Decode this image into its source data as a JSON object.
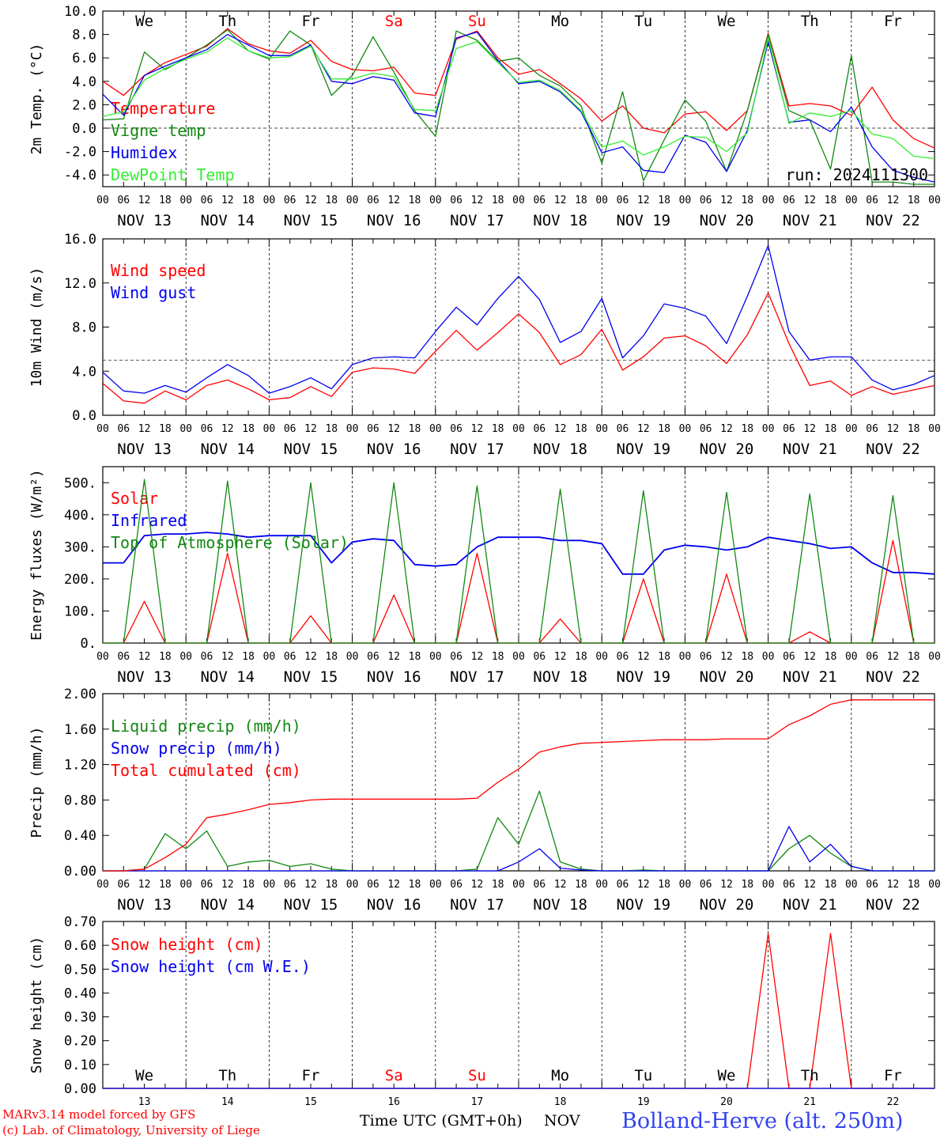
{
  "colors": {
    "red": "#ff0000",
    "green": "#118811",
    "blue": "#0000ee",
    "lightgreen": "#33ee33",
    "grid": "#000000"
  },
  "footer": {
    "model": "MARv3.14 model forced by GFS",
    "copyright": "(c) Lab. of Climatology, University of Liege",
    "xaxis": "Time UTC (GMT+0h)",
    "month": "NOV",
    "station": "Bolland-Herve (alt. 250m)"
  },
  "days": [
    {
      "date": "NOV 13",
      "dow": "We",
      "num": "13",
      "weekend": false
    },
    {
      "date": "NOV 14",
      "dow": "Th",
      "num": "14",
      "weekend": false
    },
    {
      "date": "NOV 15",
      "dow": "Fr",
      "num": "15",
      "weekend": false
    },
    {
      "date": "NOV 16",
      "dow": "Sa",
      "num": "16",
      "weekend": true
    },
    {
      "date": "NOV 17",
      "dow": "Su",
      "num": "17",
      "weekend": true
    },
    {
      "date": "NOV 18",
      "dow": "Mo",
      "num": "18",
      "weekend": false
    },
    {
      "date": "NOV 19",
      "dow": "Tu",
      "num": "19",
      "weekend": false
    },
    {
      "date": "NOV 20",
      "dow": "We",
      "num": "20",
      "weekend": false
    },
    {
      "date": "NOV 21",
      "dow": "Th",
      "num": "21",
      "weekend": false
    },
    {
      "date": "NOV 22",
      "dow": "Fr",
      "num": "22",
      "weekend": false
    }
  ],
  "hour_ticks": [
    "00",
    "06",
    "12",
    "18"
  ],
  "chart_data": [
    {
      "type": "line",
      "ylabel": "2m Temp. (°C)",
      "ylim": [
        -5,
        10
      ],
      "yticks": [
        "10.0",
        "8.0",
        "6.0",
        "4.0",
        "2.0",
        "0.0",
        "-2.0",
        "-4.0"
      ],
      "ytick_values": [
        10,
        8,
        6,
        4,
        2,
        0,
        -2,
        -4
      ],
      "ref_line": 0,
      "note": "run: 2024111300",
      "x": [
        0,
        6,
        12,
        18,
        24,
        30,
        36,
        42,
        48,
        54,
        60,
        66,
        72,
        78,
        84,
        90,
        96,
        102,
        108,
        114,
        120,
        126,
        132,
        138,
        144,
        150,
        156,
        162,
        168,
        174,
        180,
        186,
        192,
        198,
        204,
        210,
        216,
        222,
        228,
        234,
        240
      ],
      "series": [
        {
          "name": "Temperature",
          "color": "red",
          "values": [
            4.0,
            2.8,
            4.5,
            5.6,
            6.3,
            7.0,
            8.5,
            7.2,
            6.6,
            6.4,
            7.5,
            5.7,
            5.0,
            4.9,
            5.2,
            3.0,
            2.8,
            7.6,
            8.3,
            6.0,
            4.6,
            5.0,
            3.8,
            2.5,
            0.6,
            1.9,
            0.0,
            -0.4,
            1.2,
            1.4,
            -0.2,
            1.5,
            8.1,
            1.9,
            2.1,
            1.9,
            1.1,
            3.5,
            0.7,
            -0.9,
            -1.7
          ]
        },
        {
          "name": "Vigne temp",
          "color": "green",
          "values": [
            0.7,
            0.8,
            6.5,
            5.0,
            6.0,
            7.1,
            8.4,
            6.6,
            5.9,
            8.3,
            7.1,
            2.8,
            4.5,
            7.8,
            4.8,
            1.5,
            -0.7,
            8.3,
            7.5,
            5.7,
            6.0,
            4.5,
            3.6,
            1.9,
            -3.0,
            3.1,
            -4.5,
            -1.0,
            2.4,
            0.6,
            -3.7,
            1.5,
            8.0,
            1.5,
            0.7,
            -3.5,
            6.2,
            -4.6,
            -4.6,
            -4.8,
            -4.8
          ]
        },
        {
          "name": "Humidex",
          "color": "blue",
          "values": [
            2.9,
            1.1,
            4.5,
            5.3,
            6.0,
            6.7,
            8.0,
            7.1,
            6.2,
            6.2,
            7.1,
            4.0,
            3.8,
            4.4,
            4.1,
            1.3,
            1.0,
            7.7,
            8.2,
            5.8,
            3.8,
            4.0,
            3.1,
            1.4,
            -2.1,
            -1.6,
            -3.6,
            -3.8,
            -0.6,
            -1.2,
            -3.7,
            -0.2,
            7.4,
            0.5,
            0.7,
            -0.3,
            1.8,
            -1.6,
            -3.6,
            -4.2,
            -4.6
          ]
        },
        {
          "name": "DewPoint Temp",
          "color": "lightgreen",
          "values": [
            1.0,
            1.4,
            4.1,
            5.1,
            5.9,
            6.5,
            7.7,
            6.6,
            6.0,
            6.1,
            7.0,
            4.2,
            4.2,
            4.7,
            4.4,
            1.6,
            1.5,
            6.8,
            7.4,
            5.6,
            3.9,
            4.1,
            3.2,
            1.5,
            -1.6,
            -1.1,
            -2.3,
            -1.6,
            -0.7,
            -0.8,
            -2.0,
            -0.4,
            7.7,
            0.4,
            1.3,
            1.0,
            1.5,
            -0.5,
            -0.9,
            -2.4,
            -2.6
          ]
        }
      ]
    },
    {
      "type": "line",
      "ylabel": "10m Wind (m/s)",
      "ylim": [
        0,
        16
      ],
      "yticks": [
        "16.0",
        "12.0",
        "8.0",
        "4.0",
        "0.0"
      ],
      "ytick_values": [
        16,
        12,
        8,
        4,
        0
      ],
      "ref_line": 5,
      "note": "",
      "x": [
        0,
        6,
        12,
        18,
        24,
        30,
        36,
        42,
        48,
        54,
        60,
        66,
        72,
        78,
        84,
        90,
        96,
        102,
        108,
        114,
        120,
        126,
        132,
        138,
        144,
        150,
        156,
        162,
        168,
        174,
        180,
        186,
        192,
        198,
        204,
        210,
        216,
        222,
        228,
        234,
        240
      ],
      "series": [
        {
          "name": "Wind speed",
          "color": "red",
          "values": [
            2.9,
            1.3,
            1.1,
            2.2,
            1.4,
            2.7,
            3.2,
            2.4,
            1.4,
            1.6,
            2.6,
            1.7,
            3.9,
            4.3,
            4.2,
            3.8,
            5.8,
            7.7,
            5.9,
            7.5,
            9.2,
            7.5,
            4.6,
            5.5,
            7.8,
            4.1,
            5.3,
            7.0,
            7.2,
            6.3,
            4.7,
            7.3,
            11.1,
            6.5,
            2.7,
            3.1,
            1.8,
            2.6,
            1.9,
            2.3,
            2.7
          ]
        },
        {
          "name": "Wind gust",
          "color": "blue",
          "values": [
            3.9,
            2.2,
            2.0,
            2.7,
            2.1,
            3.4,
            4.6,
            3.6,
            2.0,
            2.6,
            3.4,
            2.4,
            4.6,
            5.2,
            5.3,
            5.2,
            7.6,
            9.8,
            8.2,
            10.6,
            12.6,
            10.5,
            6.6,
            7.6,
            10.6,
            5.2,
            7.2,
            10.1,
            9.7,
            9.0,
            6.5,
            10.8,
            15.4,
            7.6,
            5.0,
            5.3,
            5.3,
            3.2,
            2.3,
            2.8,
            3.6
          ]
        }
      ]
    },
    {
      "type": "line",
      "ylabel": "Energy fluxes (W/m²)",
      "ylim": [
        0,
        550
      ],
      "yticks": [
        "500.",
        "400.",
        "300.",
        "200.",
        "100.",
        "0."
      ],
      "ytick_values": [
        500,
        400,
        300,
        200,
        100,
        0
      ],
      "ref_line": null,
      "note": "",
      "x": [
        0,
        6,
        12,
        18,
        24,
        30,
        36,
        42,
        48,
        54,
        60,
        66,
        72,
        78,
        84,
        90,
        96,
        102,
        108,
        114,
        120,
        126,
        132,
        138,
        144,
        150,
        156,
        162,
        168,
        174,
        180,
        186,
        192,
        198,
        204,
        210,
        216,
        222,
        228,
        234,
        240
      ],
      "series": [
        {
          "name": "Solar",
          "color": "red",
          "values": [
            0,
            0,
            130,
            0,
            0,
            0,
            280,
            0,
            0,
            0,
            85,
            0,
            0,
            0,
            150,
            0,
            0,
            0,
            280,
            0,
            0,
            0,
            75,
            0,
            0,
            0,
            200,
            0,
            0,
            0,
            215,
            0,
            0,
            0,
            35,
            0,
            0,
            0,
            320,
            0,
            0
          ]
        },
        {
          "name": "Infrared",
          "color": "blue",
          "values": [
            250,
            250,
            335,
            340,
            340,
            345,
            340,
            330,
            335,
            335,
            335,
            250,
            315,
            325,
            320,
            245,
            240,
            245,
            300,
            330,
            330,
            330,
            320,
            320,
            310,
            215,
            215,
            290,
            305,
            300,
            290,
            300,
            330,
            320,
            310,
            295,
            300,
            250,
            220,
            220,
            215
          ]
        },
        {
          "name": "Top of Atmosphere (Solar)",
          "color": "green",
          "values": [
            0,
            0,
            510,
            0,
            0,
            0,
            505,
            0,
            0,
            0,
            500,
            0,
            0,
            0,
            500,
            0,
            0,
            0,
            490,
            0,
            0,
            0,
            480,
            0,
            0,
            0,
            475,
            0,
            0,
            0,
            470,
            0,
            0,
            0,
            465,
            0,
            0,
            0,
            460,
            0,
            0
          ]
        }
      ]
    },
    {
      "type": "line",
      "ylabel": "Precip (mm/h)",
      "ylim": [
        0,
        2
      ],
      "yticks": [
        "2.00",
        "1.60",
        "1.20",
        "0.80",
        "0.40",
        "0.00"
      ],
      "ytick_values": [
        2,
        1.6,
        1.2,
        0.8,
        0.4,
        0
      ],
      "ref_line": null,
      "note": "",
      "x": [
        0,
        6,
        12,
        18,
        24,
        30,
        36,
        42,
        48,
        54,
        60,
        66,
        72,
        78,
        84,
        90,
        96,
        102,
        108,
        114,
        120,
        126,
        132,
        138,
        144,
        150,
        156,
        162,
        168,
        174,
        180,
        186,
        192,
        198,
        204,
        210,
        216,
        222,
        228,
        234,
        240
      ],
      "series": [
        {
          "name": "Liquid precip (mm/h)",
          "color": "green",
          "values": [
            0,
            0,
            0.02,
            0.42,
            0.25,
            0.45,
            0.05,
            0.1,
            0.12,
            0.05,
            0.08,
            0.02,
            0,
            0,
            0,
            0,
            0,
            0,
            0.02,
            0.6,
            0.3,
            0.9,
            0.1,
            0.02,
            0,
            0,
            0.01,
            0,
            0,
            0,
            0,
            0,
            0,
            0.25,
            0.4,
            0.2,
            0.05,
            0,
            0,
            0,
            0
          ]
        },
        {
          "name": "Snow precip (mm/h)",
          "color": "blue",
          "values": [
            0,
            0,
            0,
            0,
            0,
            0,
            0,
            0,
            0,
            0,
            0,
            0,
            0,
            0,
            0,
            0,
            0,
            0,
            0,
            0,
            0.1,
            0.25,
            0.03,
            0.01,
            0,
            0,
            0,
            0,
            0,
            0,
            0,
            0,
            0,
            0.5,
            0.1,
            0.3,
            0.05,
            0,
            0,
            0,
            0
          ]
        },
        {
          "name": "Total cumulated (cm)",
          "color": "red",
          "values": [
            0,
            0,
            0.02,
            0.15,
            0.3,
            0.6,
            0.64,
            0.69,
            0.75,
            0.77,
            0.8,
            0.81,
            0.81,
            0.81,
            0.81,
            0.81,
            0.81,
            0.81,
            0.82,
            1.0,
            1.15,
            1.34,
            1.4,
            1.44,
            1.45,
            1.46,
            1.47,
            1.48,
            1.48,
            1.48,
            1.49,
            1.49,
            1.49,
            1.65,
            1.75,
            1.88,
            1.93,
            1.93,
            1.93,
            1.93,
            1.93
          ]
        }
      ]
    },
    {
      "type": "line",
      "ylabel": "Snow height (cm)",
      "ylim": [
        0,
        0.7
      ],
      "yticks": [
        "0.70",
        "0.60",
        "0.50",
        "0.40",
        "0.30",
        "0.20",
        "0.10",
        "0.00"
      ],
      "ytick_values": [
        0.7,
        0.6,
        0.5,
        0.4,
        0.3,
        0.2,
        0.1,
        0
      ],
      "ref_line": null,
      "note": "",
      "x": [
        0,
        6,
        12,
        18,
        24,
        30,
        36,
        42,
        48,
        54,
        60,
        66,
        72,
        78,
        84,
        90,
        96,
        102,
        108,
        114,
        120,
        126,
        132,
        138,
        144,
        150,
        156,
        162,
        168,
        174,
        180,
        186,
        192,
        198,
        204,
        210,
        216,
        222,
        228,
        234,
        240
      ],
      "series": [
        {
          "name": "Snow height (cm)",
          "color": "red",
          "values": [
            0,
            0,
            0,
            0,
            0,
            0,
            0,
            0,
            0,
            0,
            0,
            0,
            0,
            0,
            0,
            0,
            0,
            0,
            0,
            0,
            0,
            0,
            0,
            0,
            0,
            0,
            0,
            0,
            0,
            0,
            0,
            0,
            0.65,
            0,
            0,
            0.65,
            0,
            0,
            0,
            0,
            0
          ]
        },
        {
          "name": "Snow height (cm W.E.)",
          "color": "blue",
          "values": [
            0,
            0,
            0,
            0,
            0,
            0,
            0,
            0,
            0,
            0,
            0,
            0,
            0,
            0,
            0,
            0,
            0,
            0,
            0,
            0,
            0,
            0,
            0,
            0,
            0,
            0,
            0,
            0,
            0,
            0,
            0,
            0,
            0,
            0,
            0,
            0,
            0,
            0,
            0,
            0,
            0
          ]
        }
      ]
    }
  ]
}
